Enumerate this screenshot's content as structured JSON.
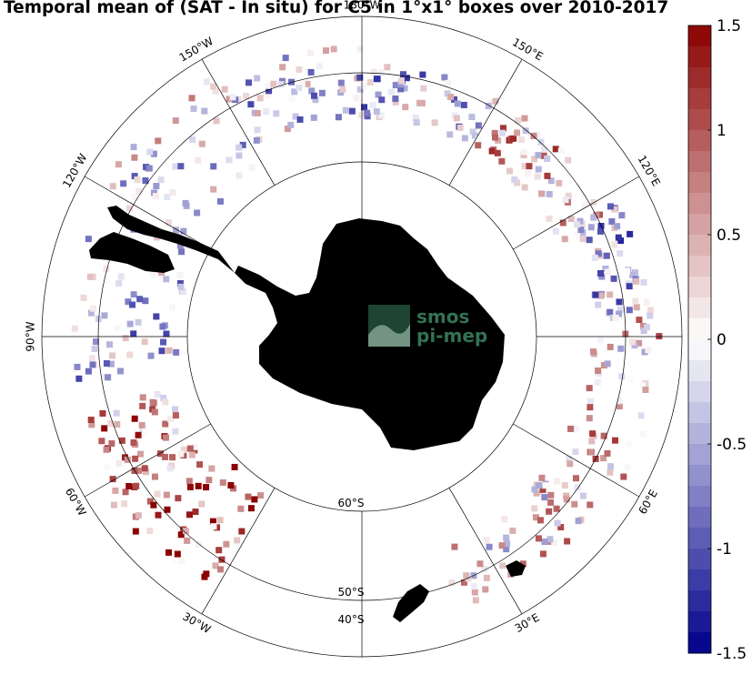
{
  "title": "Temporal mean of (SAT - In situ) for C5 in 1°x1° boxes over 2010-2017",
  "map": {
    "projection": "south-polar-stereographic",
    "lat_circles": [
      {
        "text": "60°S",
        "deg": 60
      },
      {
        "text": "50°S",
        "deg": 50
      },
      {
        "text": "40°S",
        "deg": 40
      }
    ],
    "lon_labels": [
      {
        "text": "180°W",
        "lon": 180
      },
      {
        "text": "150°W",
        "lon": -150
      },
      {
        "text": "120°W",
        "lon": -120
      },
      {
        "text": "90°W",
        "lon": -90
      },
      {
        "text": "60°W",
        "lon": -60
      },
      {
        "text": "30°W",
        "lon": -30
      },
      {
        "text": "30°E",
        "lon": 30
      },
      {
        "text": "60°E",
        "lon": 60
      },
      {
        "text": "120°E",
        "lon": 120
      },
      {
        "text": "150°E",
        "lon": 150
      }
    ],
    "land_color": "#7f7f7f"
  },
  "logo": {
    "line1": "smos",
    "line2": "pi-mep"
  },
  "colorbar": {
    "min": -1.5,
    "max": 1.5,
    "ticks": [
      {
        "text": "1.5",
        "value": 1.5
      },
      {
        "text": "1",
        "value": 1
      },
      {
        "text": "0.5",
        "value": 0.5
      },
      {
        "text": "0",
        "value": 0
      },
      {
        "text": "-0.5",
        "value": -0.5
      },
      {
        "text": "-1",
        "value": -1
      },
      {
        "text": "-1.5",
        "value": -1.5
      }
    ],
    "low_color": "#00008b",
    "mid_color": "#ffffff",
    "high_color": "#8b0000"
  }
}
